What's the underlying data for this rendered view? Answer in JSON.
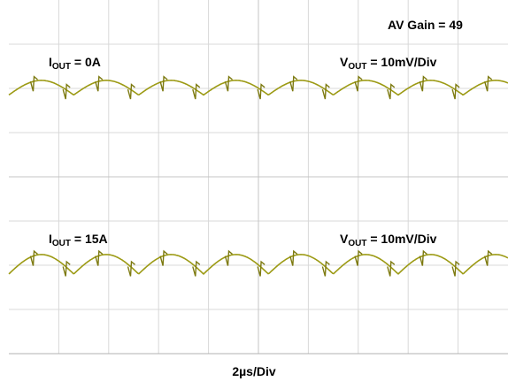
{
  "annotations": {
    "gain": "AV Gain = 49",
    "top_current_label": "I",
    "top_current_sub": "OUT",
    "top_current_value": " = 0A",
    "top_voltage_label": "V",
    "top_voltage_sub": "OUT",
    "top_voltage_value": " = 10mV/Div",
    "bottom_current_label": "I",
    "bottom_current_sub": "OUT",
    "bottom_current_value": " = 15A",
    "bottom_voltage_label": "V",
    "bottom_voltage_sub": "OUT",
    "bottom_voltage_value": " = 10mV/Div",
    "timebase": "2µs/Div"
  },
  "colors": {
    "trace": "#9c9a14",
    "trace_dark": "#7d7a10",
    "grid": "#d8d8d8",
    "frame": "#b0b0b0"
  },
  "chart_data": {
    "type": "line",
    "grid": {
      "x_divisions": 10,
      "y_divisions": 8
    },
    "x_unit": "µs",
    "x_per_division": 2,
    "x_range": [
      0,
      20
    ],
    "series": [
      {
        "channel": "top",
        "y_per_division": "10mV",
        "y_divisions_range": [
          -4,
          4
        ],
        "center_division": 2,
        "ripple_amplitude_div": 0.15,
        "ripple_period_div": 1.3,
        "spike_period_div": 0.65,
        "points": [
          [
            0,
            0.0
          ],
          [
            1.3,
            0.14
          ],
          [
            2.6,
            0.0
          ],
          [
            3.9,
            0.14
          ],
          [
            5.2,
            0.0
          ],
          [
            6.5,
            0.14
          ],
          [
            7.8,
            0.0
          ],
          [
            9.1,
            0.14
          ],
          [
            10.4,
            0.0
          ],
          [
            11.7,
            0.14
          ],
          [
            13,
            0.0
          ],
          [
            14.3,
            0.14
          ],
          [
            15.6,
            0.0
          ],
          [
            16.9,
            0.14
          ],
          [
            18.2,
            0.0
          ],
          [
            19.5,
            0.14
          ]
        ]
      },
      {
        "channel": "bottom",
        "y_per_division": "10mV",
        "y_divisions_range": [
          -4,
          4
        ],
        "center_division": -2,
        "ripple_amplitude_div": 0.2,
        "ripple_period_div": 1.3,
        "spike_period_div": 0.65,
        "points": [
          [
            0,
            0.0
          ],
          [
            1.3,
            0.18
          ],
          [
            2.6,
            0.0
          ],
          [
            3.9,
            0.18
          ],
          [
            5.2,
            0.0
          ],
          [
            6.5,
            0.18
          ],
          [
            7.8,
            0.0
          ],
          [
            9.1,
            0.18
          ],
          [
            10.4,
            0.0
          ],
          [
            11.7,
            0.18
          ],
          [
            13,
            0.0
          ],
          [
            14.3,
            0.18
          ],
          [
            15.6,
            0.0
          ],
          [
            16.9,
            0.18
          ],
          [
            18.2,
            0.0
          ],
          [
            19.5,
            0.18
          ]
        ]
      }
    ]
  }
}
